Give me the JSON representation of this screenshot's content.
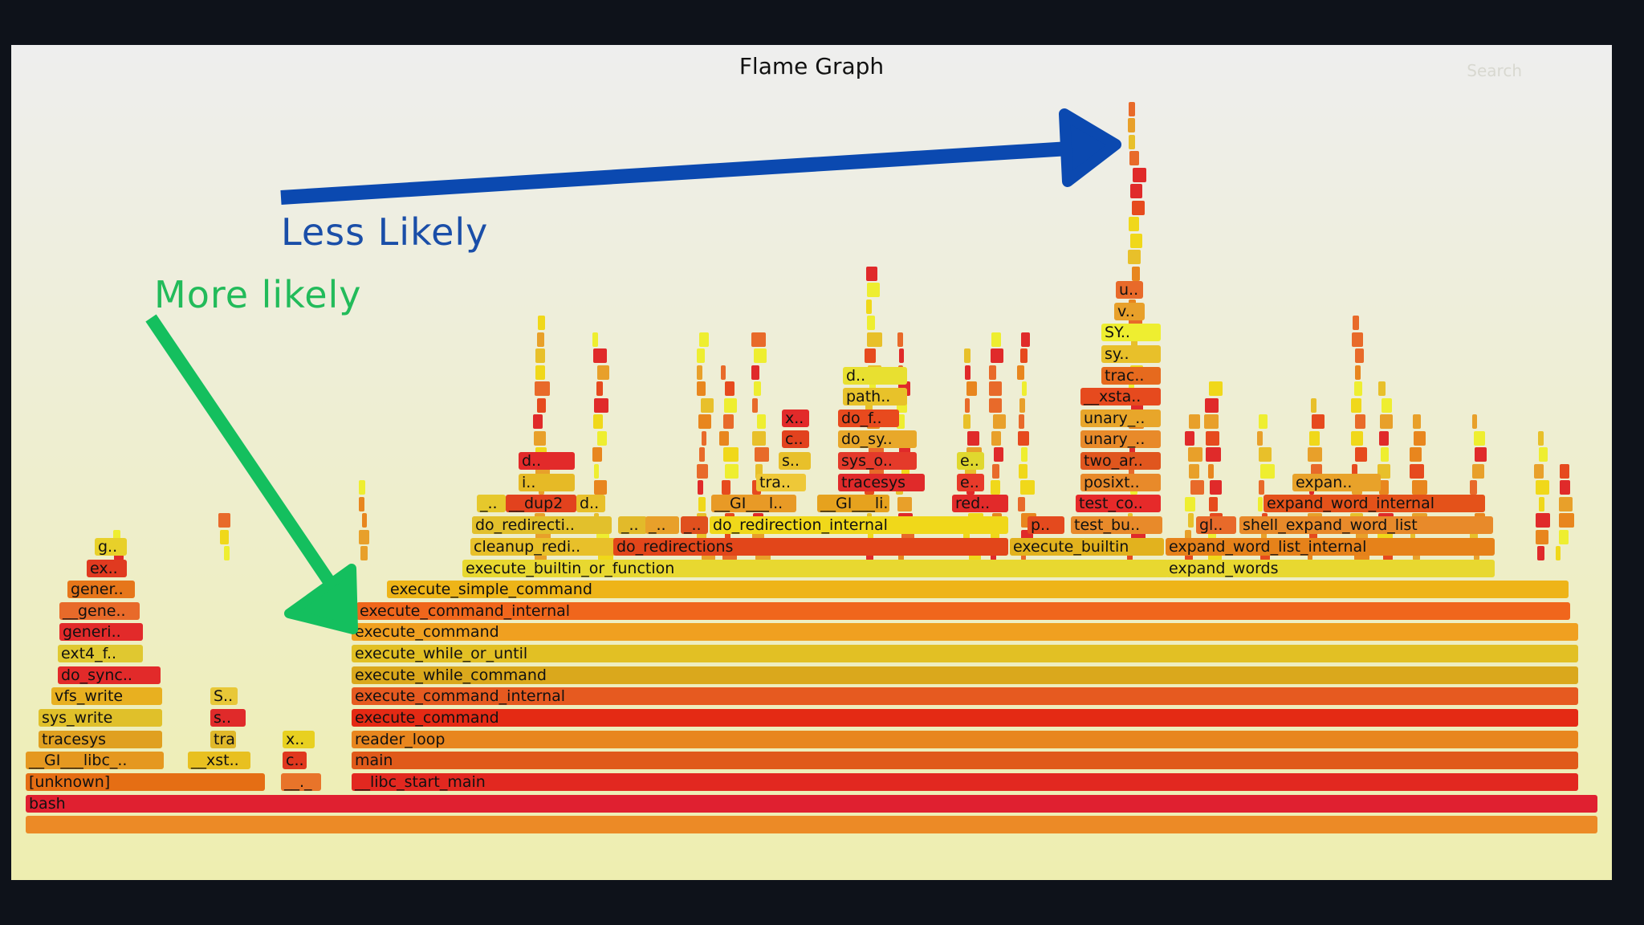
{
  "title": "Flame Graph",
  "search_label": "Search",
  "annotations": {
    "less_likely": "Less Likely",
    "more_likely": "More likely"
  },
  "colors": {
    "arrow_blue": "#0b49b0",
    "arrow_green": "#14bf5e"
  },
  "frames": [
    {
      "label": "",
      "c": "#ec8a26"
    },
    {
      "label": "bash",
      "c": "#e02030"
    },
    {
      "label": "[unknown]",
      "c": "#e56e14"
    },
    {
      "label": "__._",
      "c": "#e8742a"
    },
    {
      "label": "__libc_start_main",
      "c": "#e22820"
    },
    {
      "label": "__GI___libc_..",
      "c": "#e59820"
    },
    {
      "label": "__xst..",
      "c": "#e8c020"
    },
    {
      "label": "c..",
      "c": "#e0381e"
    },
    {
      "label": "main",
      "c": "#e05a1a"
    },
    {
      "label": "tracesys",
      "c": "#e0a020"
    },
    {
      "label": "tra..",
      "c": "#e0b82a"
    },
    {
      "label": "x..",
      "c": "#e8d020"
    },
    {
      "label": "reader_loop",
      "c": "#e8861e"
    },
    {
      "label": "sys_write",
      "c": "#e0c02a"
    },
    {
      "label": "s..",
      "c": "#e02a2a"
    },
    {
      "label": "execute_command",
      "c": "#e42a14"
    },
    {
      "label": "vfs_write",
      "c": "#e8b020"
    },
    {
      "label": "S..",
      "c": "#e8c838"
    },
    {
      "label": "execute_command_internal",
      "c": "#e65a20"
    },
    {
      "label": "do_sync..",
      "c": "#e22a2a"
    },
    {
      "label": "execute_while_command",
      "c": "#daa81c"
    },
    {
      "label": "ext4_f..",
      "c": "#e0c830"
    },
    {
      "label": "execute_while_or_until",
      "c": "#e2c024"
    },
    {
      "label": "generi..",
      "c": "#e22a2a"
    },
    {
      "label": "execute_command",
      "c": "#f0a020"
    },
    {
      "label": "__gene..",
      "c": "#e86a2a"
    },
    {
      "label": "execute_command_internal",
      "c": "#f0661c"
    },
    {
      "label": "gener..",
      "c": "#e6761a"
    },
    {
      "label": "execute_simple_command",
      "c": "#eeb418"
    },
    {
      "label": "ex..",
      "c": "#e03a20"
    },
    {
      "label": "execute_builtin_or_function",
      "c": "#e8d830"
    },
    {
      "label": "expand_words",
      "c": "#e8d830"
    },
    {
      "label": "g..",
      "c": "#e8d02a"
    },
    {
      "label": "cleanup_redi..",
      "c": "#e8c02a"
    },
    {
      "label": "do_redirections",
      "c": "#e2461a"
    },
    {
      "label": "execute_builtin",
      "c": "#e2b21e"
    },
    {
      "label": "expand_word_list_internal",
      "c": "#e6821a"
    },
    {
      "label": "_..",
      "c": "#e8d02a"
    },
    {
      "label": "do_redirecti..",
      "c": "#e2c02c"
    },
    {
      "label": "_..",
      "c": "#e2ba2a"
    },
    {
      "label": "_..",
      "c": "#e8a02a"
    },
    {
      "label": "_..",
      "c": "#e0501e"
    },
    {
      "label": "do_redirection_internal",
      "c": "#f0d81a"
    },
    {
      "label": "p..",
      "c": "#e44a1e"
    },
    {
      "label": "test_bu..",
      "c": "#e88a2a"
    },
    {
      "label": "gl..",
      "c": "#e86a2a"
    },
    {
      "label": "shell_expand_word_list",
      "c": "#e88a2a"
    },
    {
      "label": "_..",
      "c": "#e6c82c"
    },
    {
      "label": "__dup2",
      "c": "#e2421e"
    },
    {
      "label": "d..",
      "c": "#e8c02a"
    },
    {
      "label": "__GI___l..",
      "c": "#e89a26"
    },
    {
      "label": "__GI___li..",
      "c": "#e6a21e"
    },
    {
      "label": "red..",
      "c": "#e22a2a"
    },
    {
      "label": "test_co..",
      "c": "#e62a2a"
    },
    {
      "label": "expand_word_internal",
      "c": "#e4521a"
    },
    {
      "label": "i..",
      "c": "#e6ba26"
    },
    {
      "label": "tra..",
      "c": "#eec838"
    },
    {
      "label": "tracesys",
      "c": "#e02a2a"
    },
    {
      "label": "e..",
      "c": "#e83a2a"
    },
    {
      "label": "posixt..",
      "c": "#e88a2a"
    },
    {
      "label": "expan..",
      "c": "#e8a22a"
    },
    {
      "label": "d..",
      "c": "#e22a2a"
    },
    {
      "label": "s..",
      "c": "#e8c02a"
    },
    {
      "label": "sys_o..",
      "c": "#e43a2a"
    },
    {
      "label": "e..",
      "c": "#e0d82e"
    },
    {
      "label": "two_ar..",
      "c": "#e0561e"
    },
    {
      "label": "c..",
      "c": "#e2421e"
    },
    {
      "label": "do_sy..",
      "c": "#e8a82a"
    },
    {
      "label": "unary_..",
      "c": "#e88a2a"
    },
    {
      "label": "x..",
      "c": "#e22a2a"
    },
    {
      "label": "do_f..",
      "c": "#e84a1e"
    },
    {
      "label": "unary_..",
      "c": "#e8a62a"
    },
    {
      "label": "path..",
      "c": "#e8c22a"
    },
    {
      "label": "__xsta..",
      "c": "#e64a1e"
    },
    {
      "label": "d..",
      "c": "#e8e030"
    },
    {
      "label": "trac..",
      "c": "#e66a1e"
    },
    {
      "label": "sy..",
      "c": "#e8c02a"
    },
    {
      "label": "SY..",
      "c": "#eeee30"
    },
    {
      "label": "v..",
      "c": "#e8a02a"
    },
    {
      "label": "u..",
      "c": "#e86a2a"
    }
  ]
}
